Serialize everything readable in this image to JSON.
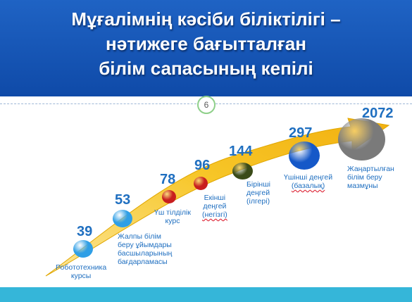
{
  "title": {
    "line1": "Мұғалімнің кәсіби біліктілігі –",
    "line2": "нәтижеге бағытталған",
    "line3": "білім сапасының кепілі"
  },
  "page_number": "6",
  "colors": {
    "header": "#1a57b8",
    "arrow": "#f6c21c",
    "footer": "#35b6d9",
    "text": "#1f6fc0"
  },
  "milestones": [
    {
      "value": "39",
      "label": [
        "Робототехника",
        "курсы"
      ],
      "color": "#2f9fe6"
    },
    {
      "value": "53",
      "label": [
        "Жалпы білім",
        "беру ұйымдары",
        "басшыларының",
        "бағдарламасы"
      ],
      "color": "#2f9fe6"
    },
    {
      "value": "78",
      "label": [
        "Үш тілділік",
        "курс"
      ],
      "color": "#c81e1e"
    },
    {
      "value": "96",
      "label": [
        "Екінші",
        "деңгей",
        "(негізгі)"
      ],
      "color": "#c81e1e"
    },
    {
      "value": "144",
      "label": [
        "Бірінші",
        "деңгей",
        "(ілгері)"
      ],
      "color": "#3a4a18"
    },
    {
      "value": "297",
      "label": [
        "Үшінші деңгей",
        "(базалық)"
      ],
      "color": "#1558c8"
    },
    {
      "value": "2072",
      "label": [
        "Жаңартылған",
        "білім беру",
        "мазмұны"
      ],
      "color": "#7a7a7a"
    }
  ]
}
